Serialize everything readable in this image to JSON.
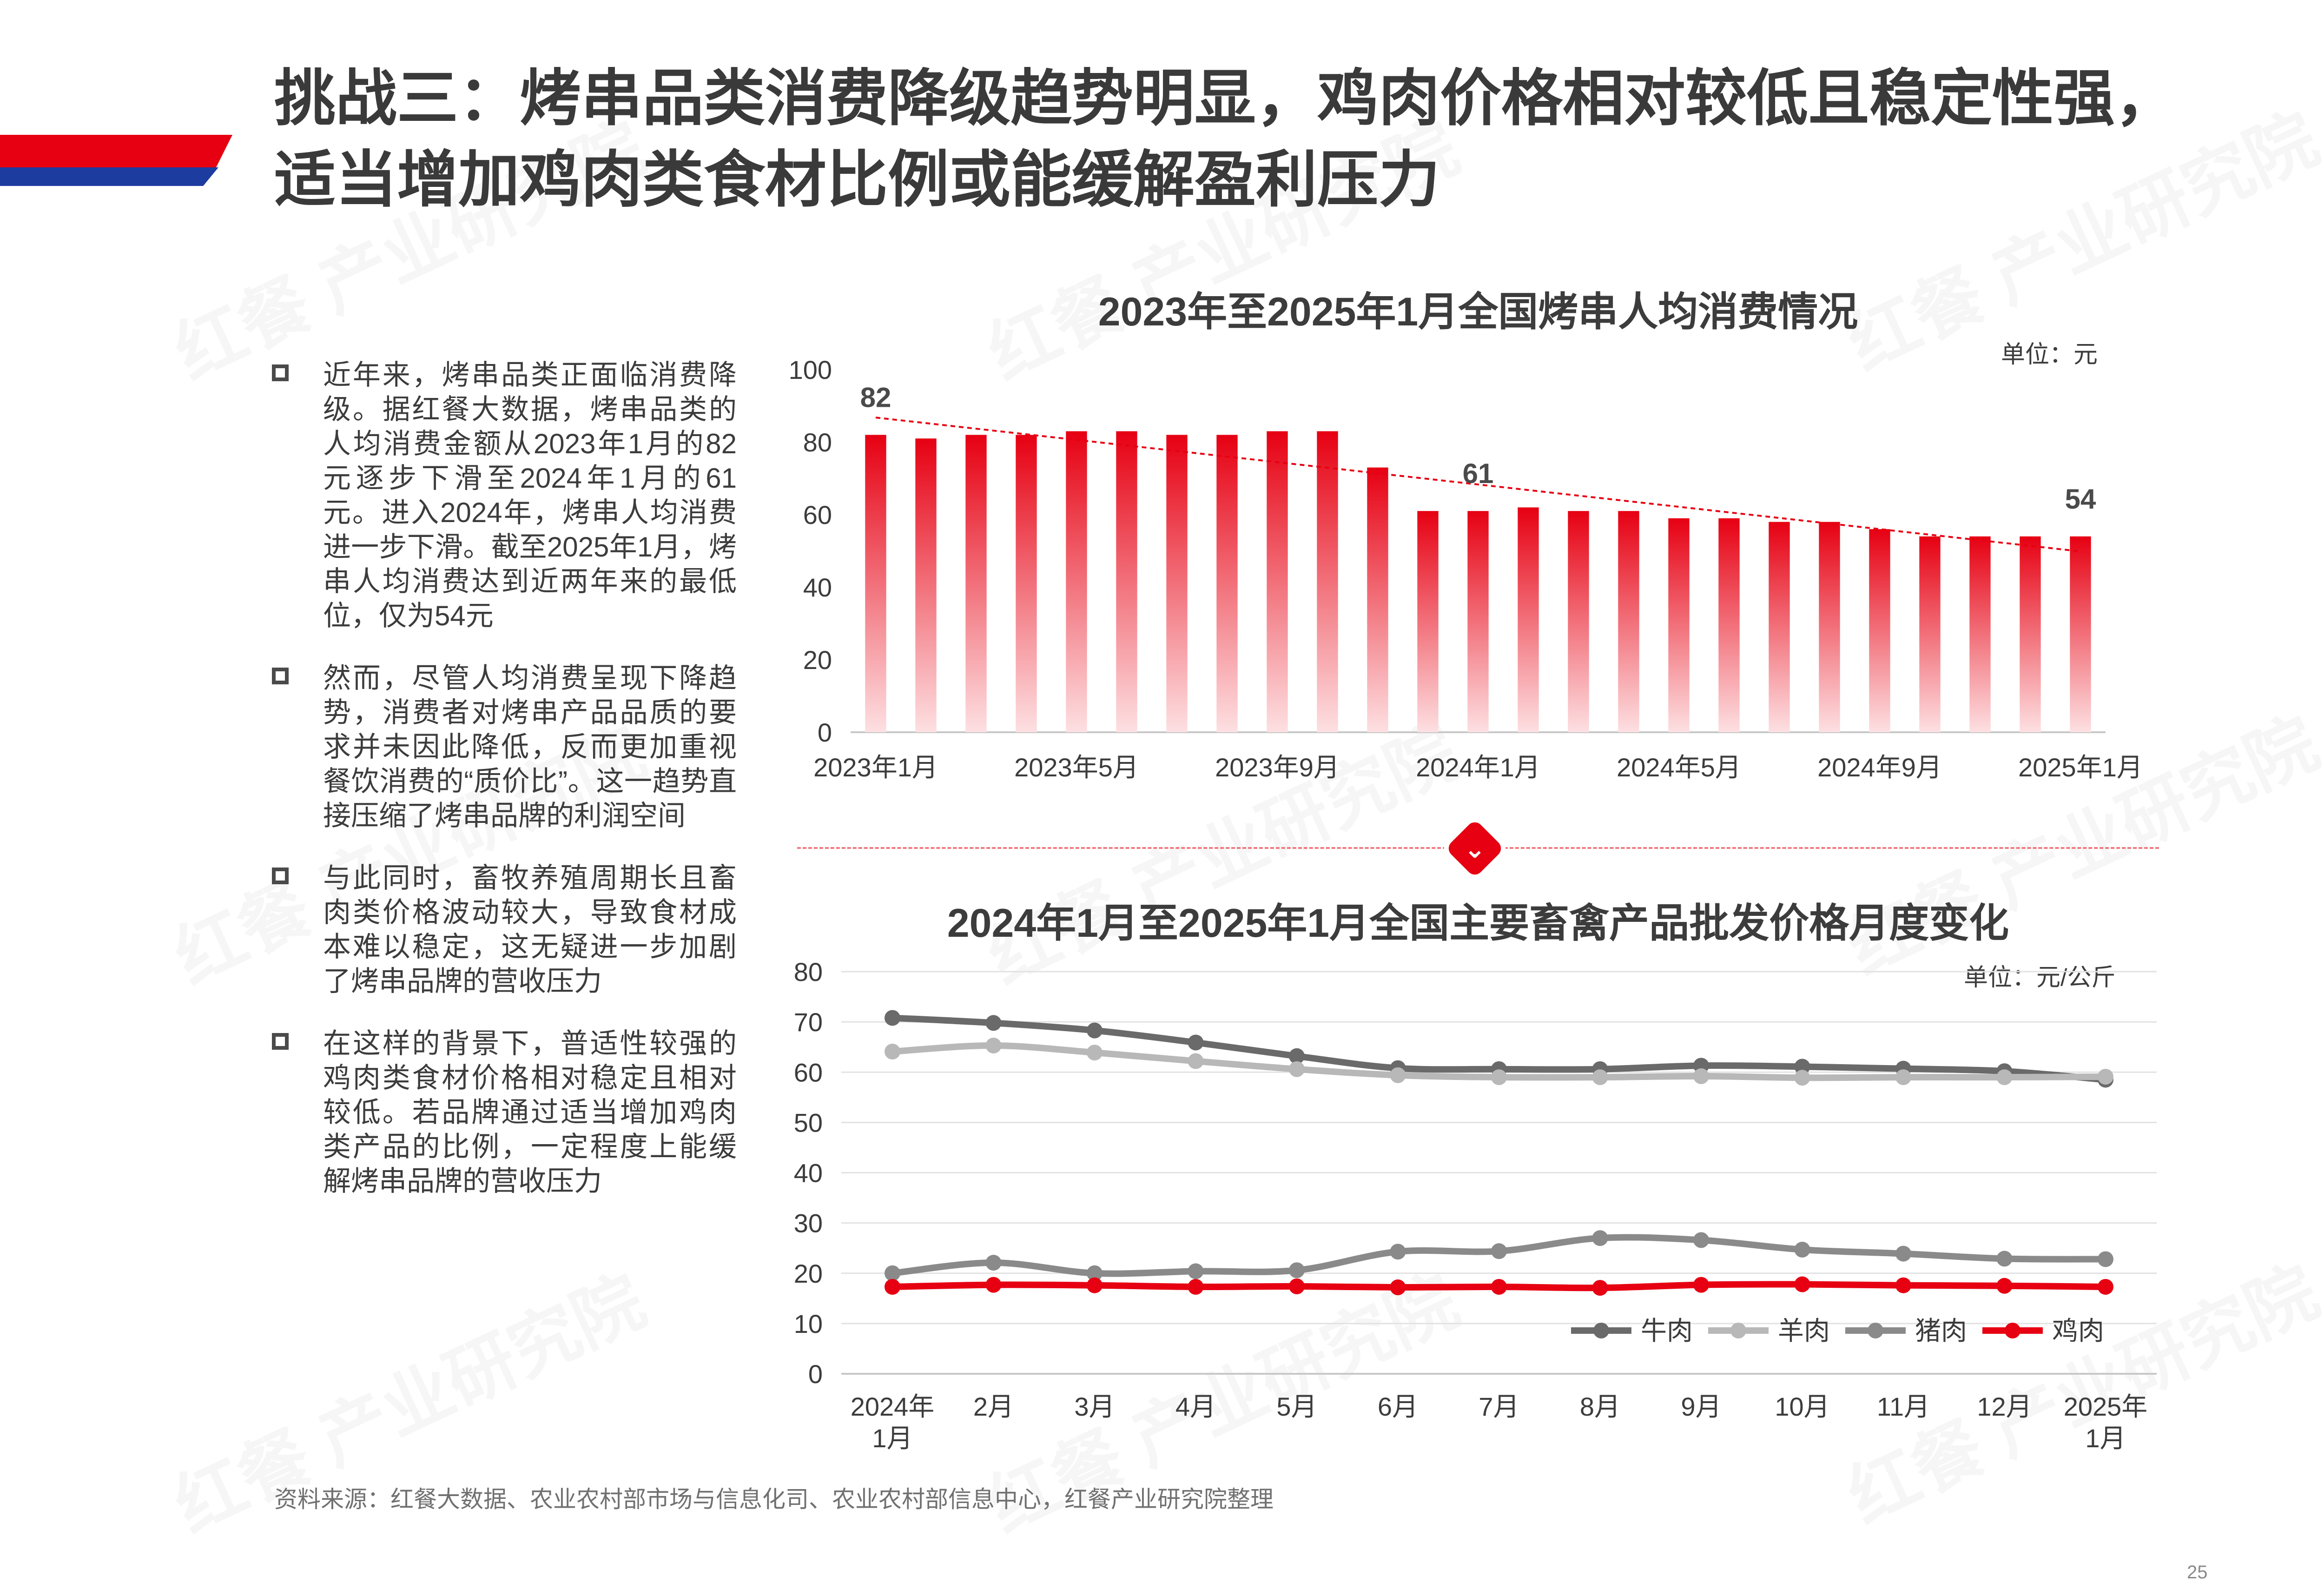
{
  "page": {
    "title": "挑战三：烤串品类消费降级趋势明显，鸡肉价格相对较低且稳定性强，适当增加鸡肉类食材比例或能缓解盈利压力",
    "source": "资料来源：红餐大数据、农业农村部市场与信息化司、农业农村部信息中心，红餐产业研究院整理",
    "page_number": "25",
    "watermark": "红餐 产业研究院",
    "colors": {
      "accent_red": "#e60012",
      "accent_blue": "#1d3ca0"
    }
  },
  "bullets": [
    "近年来，烤串品类正面临消费降级。据红餐大数据，烤串品类的人均消费金额从2023年1月的82元逐步下滑至2024年1月的61元。进入2024年，烤串人均消费进一步下滑。截至2025年1月，烤串人均消费达到近两年来的最低位，仅为54元",
    "然而，尽管人均消费呈现下降趋势，消费者对烤串产品品质的要求并未因此降低，反而更加重视餐饮消费的“质价比”。这一趋势直接压缩了烤串品牌的利润空间",
    "与此同时，畜牧养殖周期长且畜肉类价格波动较大，导致食材成本难以稳定，这无疑进一步加剧了烤串品牌的营收压力",
    "在这样的背景下，普适性较强的鸡肉类食材价格相对稳定且相对较低。若品牌通过适当增加鸡肉类产品的比例，一定程度上能缓解烤串品牌的营收压力"
  ],
  "chart_data": [
    {
      "type": "bar",
      "title": "2023年至2025年1月全国烤串人均消费情况",
      "unit_label": "单位：元",
      "categories": [
        "2023年1月",
        "2023年2月",
        "2023年3月",
        "2023年4月",
        "2023年5月",
        "2023年6月",
        "2023年7月",
        "2023年8月",
        "2023年9月",
        "2023年10月",
        "2023年11月",
        "2023年12月",
        "2024年1月",
        "2024年2月",
        "2024年3月",
        "2024年4月",
        "2024年5月",
        "2024年6月",
        "2024年7月",
        "2024年8月",
        "2024年9月",
        "2024年10月",
        "2024年11月",
        "2024年12月",
        "2025年1月"
      ],
      "tick_labels": [
        "2023年1月",
        "2023年5月",
        "2023年9月",
        "2024年1月",
        "2024年5月",
        "2024年9月",
        "2025年1月"
      ],
      "tick_indices": [
        0,
        4,
        8,
        12,
        16,
        20,
        24
      ],
      "values": [
        82,
        81,
        82,
        82,
        83,
        83,
        82,
        82,
        83,
        83,
        73,
        61,
        61,
        62,
        61,
        61,
        59,
        59,
        58,
        58,
        56,
        54,
        54,
        54,
        54
      ],
      "data_labels": [
        {
          "index": 0,
          "text": "82"
        },
        {
          "index": 12,
          "text": "61"
        },
        {
          "index": 24,
          "text": "54"
        }
      ],
      "trendline": true,
      "ylim": [
        0,
        100
      ],
      "yticks": [
        0,
        20,
        40,
        60,
        80,
        100
      ],
      "colors": {
        "bar_top": "#e60012",
        "bar_bottom": "#fde0e2",
        "trend": "#e60012"
      }
    },
    {
      "type": "line",
      "title": "2024年1月至2025年1月全国主要畜禽产品批发价格月度变化",
      "unit_label": "单位：元/公斤",
      "categories": [
        [
          "2024年",
          "1月"
        ],
        [
          "2月"
        ],
        [
          "3月"
        ],
        [
          "4月"
        ],
        [
          "5月"
        ],
        [
          "6月"
        ],
        [
          "7月"
        ],
        [
          "8月"
        ],
        [
          "9月"
        ],
        [
          "10月"
        ],
        [
          "11月"
        ],
        [
          "12月"
        ],
        [
          "2025年",
          "1月"
        ]
      ],
      "ylim": [
        0,
        80
      ],
      "yticks": [
        0,
        10,
        20,
        30,
        40,
        50,
        60,
        70,
        80
      ],
      "legend_position": "bottom-right",
      "series": [
        {
          "name": "牛肉",
          "color": "#6a6a6a",
          "values": [
            70.8,
            69.8,
            68.3,
            65.9,
            63.2,
            60.8,
            60.6,
            60.6,
            61.3,
            61.1,
            60.7,
            60.2,
            58.5
          ]
        },
        {
          "name": "羊肉",
          "color": "#b8b8b8",
          "values": [
            64.1,
            65.3,
            63.9,
            62.2,
            60.6,
            59.4,
            59.0,
            59.0,
            59.2,
            58.9,
            59.0,
            59.0,
            59.1
          ]
        },
        {
          "name": "猪肉",
          "color": "#8a8a8a",
          "values": [
            20.0,
            22.1,
            20.0,
            20.4,
            20.6,
            24.3,
            24.4,
            27.0,
            26.6,
            24.7,
            23.9,
            22.9,
            22.8
          ]
        },
        {
          "name": "鸡肉",
          "color": "#e60012",
          "values": [
            17.3,
            17.7,
            17.6,
            17.3,
            17.4,
            17.2,
            17.3,
            17.1,
            17.7,
            17.8,
            17.6,
            17.5,
            17.3
          ]
        }
      ]
    }
  ]
}
